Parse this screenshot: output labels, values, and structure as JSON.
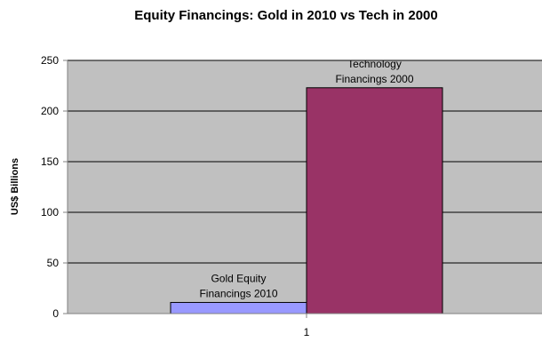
{
  "chart_data": {
    "type": "bar",
    "title": "Equity Financings: Gold in 2010 vs Tech in 2000",
    "xlabel": "",
    "ylabel": "US$ Billions",
    "categories": [
      "1"
    ],
    "ylim": [
      0,
      250
    ],
    "yticks": [
      "0",
      "50",
      "100",
      "150",
      "200",
      "250"
    ],
    "grid": true,
    "plot_background": "#c0c0c0",
    "series": [
      {
        "name": "Gold Equity Financings 2010",
        "label_lines": [
          "Gold Equity",
          "Financings 2010"
        ],
        "values": [
          11
        ],
        "color": "#9999ff"
      },
      {
        "name": "Technology Financings 2000",
        "label_lines": [
          "Technology",
          "Financings 2000"
        ],
        "values": [
          223
        ],
        "color": "#993366"
      }
    ]
  }
}
